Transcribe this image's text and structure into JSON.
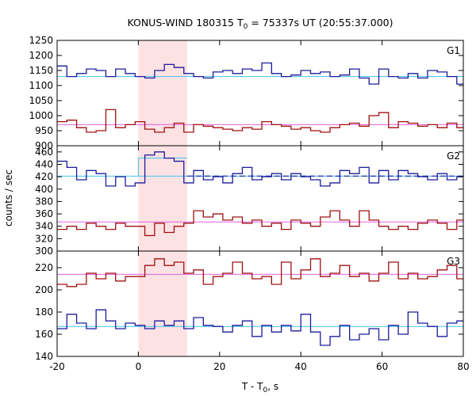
{
  "colors": {
    "blue": "#1c1c9c",
    "darkred": "#a01010",
    "cyan": "#40c0e8",
    "pink": "#e060e0",
    "shade": "#fde2e4"
  },
  "chart_data": {
    "type": "line",
    "title_main": "KONUS-WIND 180315 T",
    "title_sub": "0",
    "title_rest": " = 75337s UT (20:55:37.000)",
    "xlabel_main": "T - T",
    "xlabel_sub": "0",
    "xlabel_rest": ", s",
    "ylabel": "counts / sec",
    "xlim": [
      -20,
      80
    ],
    "x_ticks": [
      -20,
      0,
      20,
      40,
      60,
      80
    ],
    "bin_edges": [
      -20,
      -17.6,
      -15.2,
      -12.8,
      -10.4,
      -8,
      -5.6,
      -3.2,
      -0.8,
      1.6,
      4,
      6.4,
      8.8,
      11.2,
      13.6,
      16,
      18.4,
      20.8,
      23.2,
      25.6,
      28,
      30.4,
      32.8,
      35.2,
      37.6,
      40,
      42.4,
      44.8,
      47.2,
      49.6,
      52,
      54.4,
      56.8,
      59.2,
      61.6,
      64,
      66.4,
      68.8,
      71.2,
      73.6,
      76,
      78.4,
      80
    ],
    "shaded_interval": [
      0,
      12
    ],
    "panels": [
      {
        "label": "G1",
        "ylim": [
          900,
          1250
        ],
        "y_ticks": [
          900,
          950,
          1000,
          1050,
          1100,
          1150,
          1200,
          1250
        ],
        "series": [
          {
            "color": "blue",
            "values": [
              1165,
              1130,
              1140,
              1155,
              1150,
              1130,
              1155,
              1140,
              1130,
              1125,
              1150,
              1170,
              1160,
              1140,
              1130,
              1125,
              1145,
              1150,
              1140,
              1155,
              1150,
              1175,
              1140,
              1130,
              1135,
              1150,
              1140,
              1145,
              1130,
              1135,
              1155,
              1125,
              1105,
              1155,
              1130,
              1125,
              1140,
              1125,
              1150,
              1145,
              1130,
              1105
            ]
          },
          {
            "color": "darkred",
            "values": [
              980,
              985,
              960,
              945,
              950,
              1020,
              960,
              970,
              980,
              955,
              945,
              960,
              975,
              945,
              970,
              965,
              960,
              955,
              950,
              960,
              955,
              980,
              970,
              965,
              955,
              960,
              950,
              945,
              960,
              970,
              975,
              965,
              1000,
              1010,
              960,
              980,
              975,
              965,
              970,
              960,
              975,
              960
            ]
          }
        ],
        "fits": [
          {
            "color": "cyan",
            "value": 1130
          },
          {
            "color": "pink",
            "value": 970
          }
        ]
      },
      {
        "label": "G2",
        "ylim": [
          300,
          470
        ],
        "y_ticks": [
          300,
          320,
          340,
          360,
          380,
          400,
          420,
          440,
          460
        ],
        "series": [
          {
            "color": "blue",
            "values": [
              445,
              435,
              415,
              430,
              425,
              405,
              420,
              405,
              410,
              455,
              460,
              450,
              445,
              410,
              430,
              415,
              420,
              410,
              425,
              435,
              415,
              420,
              425,
              415,
              425,
              420,
              415,
              405,
              410,
              430,
              425,
              435,
              410,
              430,
              415,
              430,
              425,
              420,
              415,
              425,
              415,
              420
            ]
          },
          {
            "color": "darkred",
            "values": [
              335,
              340,
              335,
              345,
              340,
              335,
              345,
              340,
              340,
              325,
              345,
              330,
              340,
              345,
              365,
              355,
              360,
              350,
              355,
              345,
              350,
              340,
              345,
              335,
              350,
              345,
              340,
              355,
              365,
              350,
              340,
              365,
              350,
              340,
              335,
              340,
              335,
              345,
              350,
              345,
              335,
              350
            ]
          }
        ],
        "fits": [
          {
            "color": "cyan",
            "value": 421
          },
          {
            "color": "pink",
            "value": 347
          }
        ],
        "pre_fit": {
          "color": "cyan",
          "value": 450,
          "x": [
            0,
            12
          ]
        },
        "dashed_fit": {
          "color": "blue",
          "value": 421,
          "x": [
            12,
            80
          ]
        }
      },
      {
        "label": "G3",
        "ylim": [
          140,
          235
        ],
        "y_ticks": [
          140,
          160,
          180,
          200,
          220
        ],
        "series": [
          {
            "color": "darkred",
            "values": [
              205,
              203,
              205,
              215,
              210,
              215,
              208,
              212,
              212,
              222,
              228,
              222,
              225,
              215,
              218,
              205,
              212,
              215,
              225,
              215,
              210,
              212,
              205,
              225,
              210,
              218,
              228,
              212,
              215,
              222,
              212,
              215,
              208,
              215,
              225,
              210,
              215,
              210,
              212,
              218,
              222,
              210
            ]
          },
          {
            "color": "blue",
            "values": [
              165,
              178,
              170,
              165,
              182,
              172,
              165,
              170,
              168,
              165,
              172,
              168,
              172,
              165,
              175,
              168,
              167,
              162,
              168,
              172,
              158,
              168,
              162,
              168,
              163,
              178,
              162,
              150,
              158,
              168,
              155,
              160,
              165,
              155,
              168,
              160,
              180,
              170,
              167,
              158,
              170,
              172
            ]
          }
        ],
        "fits": [
          {
            "color": "pink",
            "value": 214
          },
          {
            "color": "cyan",
            "value": 167
          }
        ]
      }
    ]
  }
}
